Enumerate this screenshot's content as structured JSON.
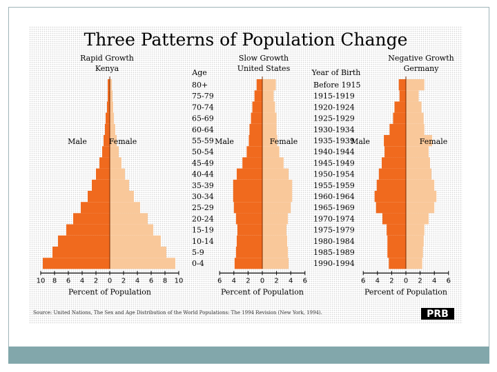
{
  "title": "Three Patterns of Population Change",
  "age_label": "Age",
  "year_label": "Year of Birth",
  "male_label": "Male",
  "female_label": "Female",
  "xaxis_label": "Percent of Population",
  "source": "Source: United Nations, The Sex and Age Distribution of the World Populations: The 1994 Revision (New York, 1994).",
  "logo": "PRB",
  "age_groups": [
    "80+",
    "75-79",
    "70-74",
    "65-69",
    "60-64",
    "55-59",
    "50-54",
    "45-49",
    "40-44",
    "35-39",
    "30-34",
    "25-29",
    "20-24",
    "15-19",
    "10-14",
    "5-9",
    "0-4"
  ],
  "birth_years": [
    "Before 1915",
    "1915-1919",
    "1920-1924",
    "1925-1929",
    "1930-1934",
    "1935-1939",
    "1940-1944",
    "1945-1949",
    "1950-1954",
    "1955-1959",
    "1960-1964",
    "1965-1969",
    "1970-1974",
    "1975-1979",
    "1980-1984",
    "1985-1989",
    "1990-1994"
  ],
  "colors": {
    "male": "#f06a1e",
    "female": "#f9c89a",
    "axis": "#000000"
  },
  "chart_data": [
    {
      "type": "bar",
      "title": "Rapid Growth",
      "subtitle": "Kenya",
      "xlabel": "Percent of Population",
      "xlim": [
        -10,
        10
      ],
      "ticks": [
        10,
        8,
        6,
        4,
        2,
        0,
        2,
        4,
        6,
        8,
        10
      ],
      "categories": [
        "80+",
        "75-79",
        "70-74",
        "65-69",
        "60-64",
        "55-59",
        "50-54",
        "45-49",
        "40-44",
        "35-39",
        "30-34",
        "25-29",
        "20-24",
        "15-19",
        "10-14",
        "5-9",
        "0-4"
      ],
      "series": [
        {
          "name": "Male",
          "values": [
            0.3,
            0.3,
            0.4,
            0.6,
            0.7,
            0.9,
            1.1,
            1.5,
            2.0,
            2.6,
            3.2,
            4.2,
            5.3,
            6.3,
            7.5,
            8.3,
            9.7
          ]
        },
        {
          "name": "Female",
          "values": [
            0.3,
            0.4,
            0.5,
            0.6,
            0.8,
            1.0,
            1.3,
            1.7,
            2.2,
            2.8,
            3.5,
            4.4,
            5.5,
            6.3,
            7.4,
            8.2,
            9.5
          ]
        }
      ]
    },
    {
      "type": "bar",
      "title": "Slow Growth",
      "subtitle": "United States",
      "xlabel": "Percent of Population",
      "xlim": [
        -6,
        6
      ],
      "ticks": [
        6,
        4,
        2,
        0,
        2,
        4,
        6
      ],
      "categories": [
        "80+",
        "75-79",
        "70-74",
        "65-69",
        "60-64",
        "55-59",
        "50-54",
        "45-49",
        "40-44",
        "35-39",
        "30-34",
        "25-29",
        "20-24",
        "15-19",
        "10-14",
        "5-9",
        "0-4"
      ],
      "series": [
        {
          "name": "Male",
          "values": [
            0.8,
            1.1,
            1.4,
            1.6,
            1.8,
            1.9,
            2.2,
            2.8,
            3.6,
            4.1,
            4.1,
            4.0,
            3.7,
            3.5,
            3.6,
            3.7,
            3.9
          ]
        },
        {
          "name": "Female",
          "values": [
            1.9,
            1.6,
            1.8,
            2.0,
            2.0,
            2.1,
            2.4,
            3.0,
            3.7,
            4.2,
            4.2,
            4.0,
            3.6,
            3.4,
            3.5,
            3.6,
            3.7
          ]
        }
      ]
    },
    {
      "type": "bar",
      "title": "Negative Growth",
      "subtitle": "Germany",
      "xlabel": "Percent of Population",
      "xlim": [
        -6,
        6
      ],
      "ticks": [
        6,
        4,
        2,
        0,
        2,
        4,
        6
      ],
      "categories": [
        "80+",
        "75-79",
        "70-74",
        "65-69",
        "60-64",
        "55-59",
        "50-54",
        "45-49",
        "40-44",
        "35-39",
        "30-34",
        "25-29",
        "20-24",
        "15-19",
        "10-14",
        "5-9",
        "0-4"
      ],
      "series": [
        {
          "name": "Male",
          "values": [
            1.0,
            0.9,
            1.6,
            1.8,
            2.3,
            3.1,
            3.0,
            3.4,
            3.8,
            4.1,
            4.4,
            4.2,
            3.3,
            2.7,
            2.6,
            2.6,
            2.4
          ]
        },
        {
          "name": "Female",
          "values": [
            2.6,
            1.8,
            2.2,
            2.5,
            2.6,
            3.7,
            3.2,
            3.4,
            3.6,
            4.0,
            4.3,
            4.0,
            3.2,
            2.6,
            2.5,
            2.4,
            2.3
          ]
        }
      ]
    }
  ]
}
